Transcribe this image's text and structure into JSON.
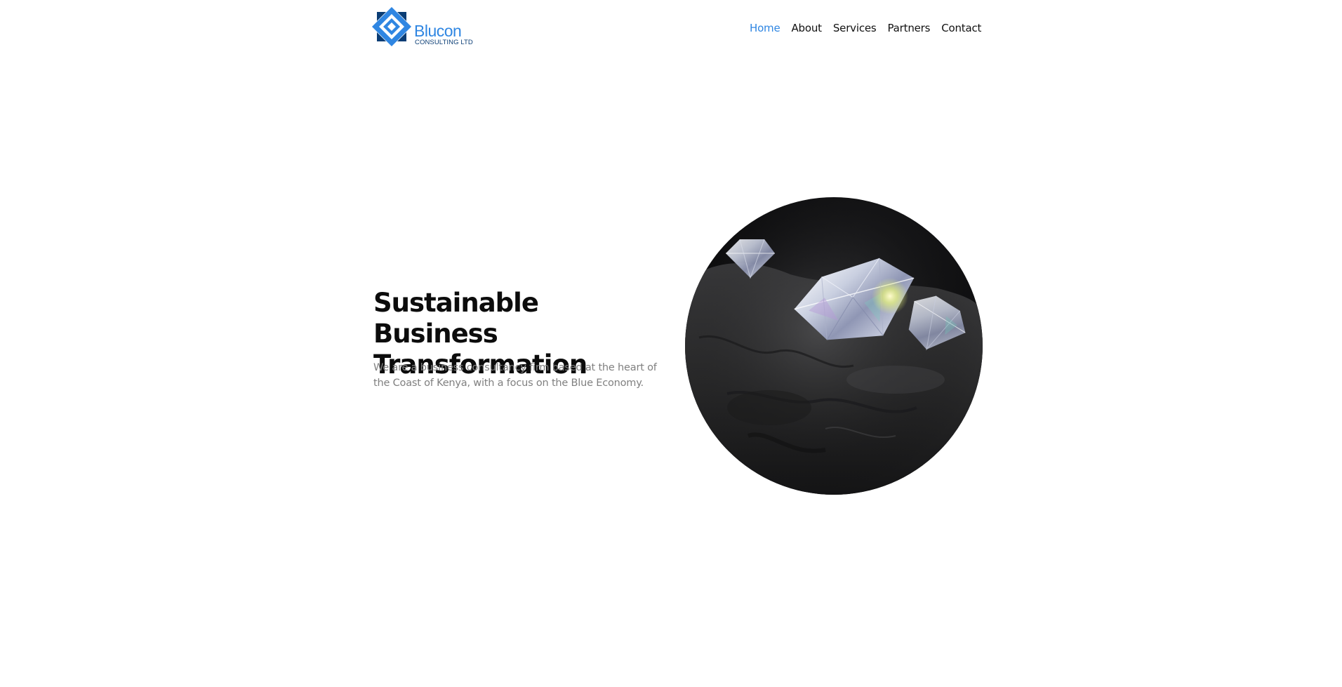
{
  "header": {
    "logo": {
      "name": "Blucon",
      "tagline": "CONSULTING LTD",
      "colors": {
        "primary": "#2f86e2",
        "dark": "#0a3d75"
      }
    },
    "nav": [
      {
        "label": "Home",
        "active": true
      },
      {
        "label": "About",
        "active": false
      },
      {
        "label": "Services",
        "active": false
      },
      {
        "label": "Partners",
        "active": false
      },
      {
        "label": "Contact",
        "active": false
      }
    ]
  },
  "hero": {
    "title": "Sustainable Business Transformation",
    "subtitle": "We are a business consultancy firm based at the heart of the Coast of Kenya, with a focus on the Blue Economy.",
    "image_icon": "diamonds-on-rock-image"
  },
  "colors": {
    "accent": "#2f86e2",
    "text": "#0c0c0c",
    "muted": "#808080",
    "background": "#ffffff"
  }
}
